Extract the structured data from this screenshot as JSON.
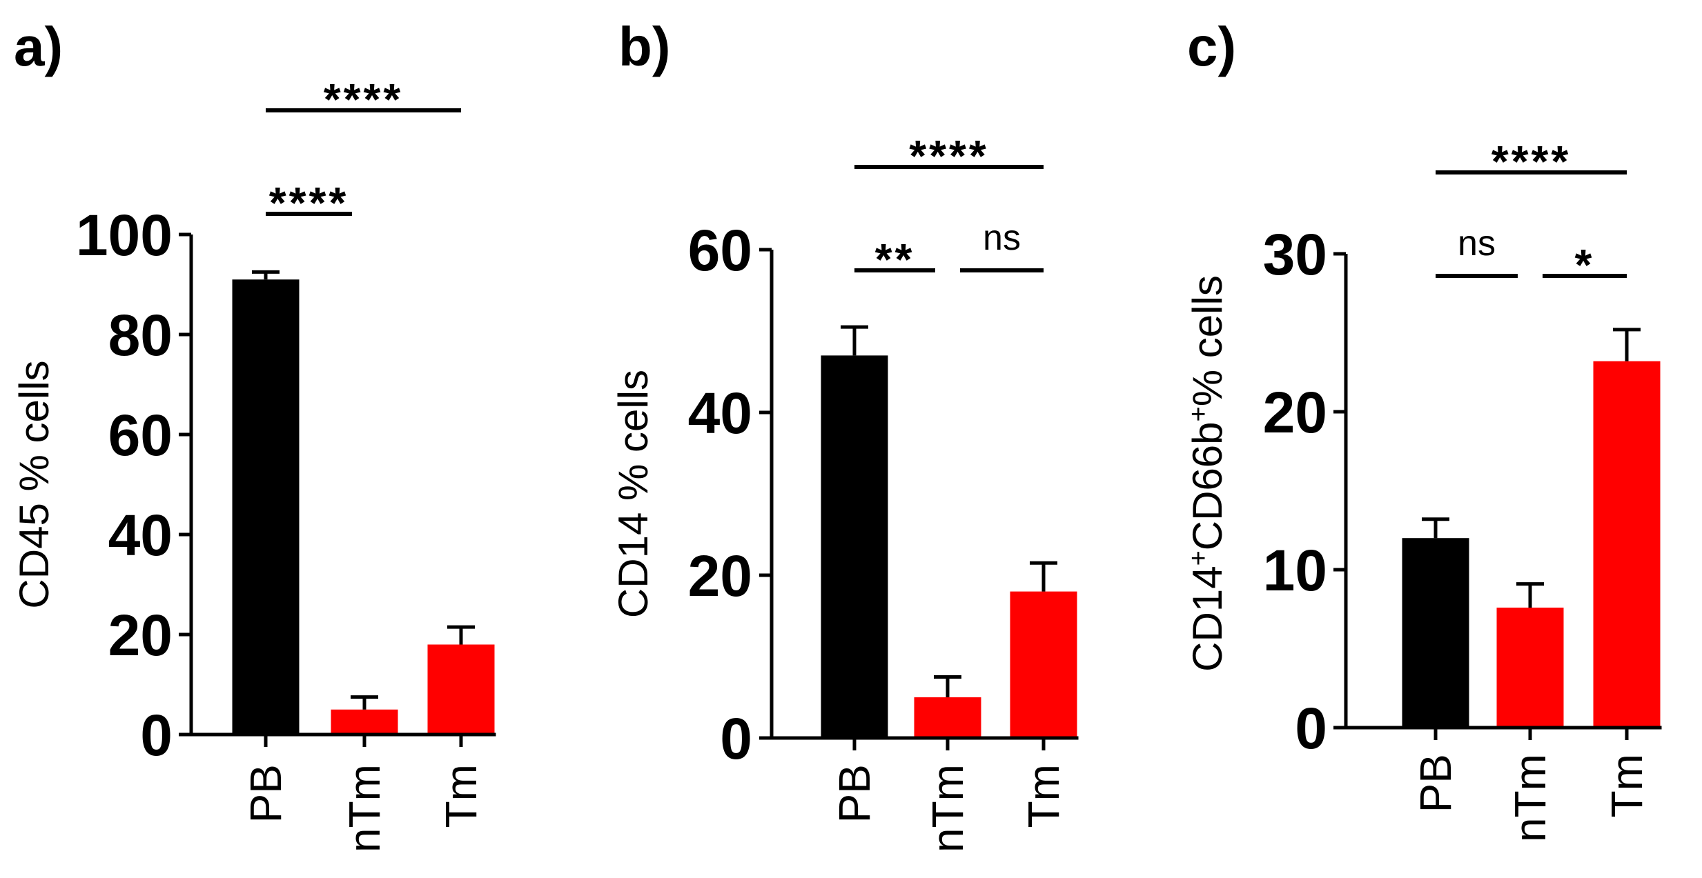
{
  "chart_data": [
    {
      "type": "bar",
      "panel_label": "a)",
      "categories": [
        "PB",
        "nTm",
        "Tm"
      ],
      "values": [
        91,
        5,
        18
      ],
      "errors": [
        1.5,
        2.5,
        3.5
      ],
      "bar_colors": [
        "#000000",
        "#ff0000",
        "#ff0000"
      ],
      "ylabel": "CD45 % cells",
      "ylabel_sup": [],
      "ylim": [
        0,
        100
      ],
      "yticks": [
        0,
        20,
        40,
        60,
        80,
        100
      ],
      "comparisons": [
        {
          "from": 0,
          "to": 1,
          "label": "****",
          "level": 0
        },
        {
          "from": 0,
          "to": 2,
          "label": "****",
          "level": 1
        }
      ]
    },
    {
      "type": "bar",
      "panel_label": "b)",
      "categories": [
        "PB",
        "nTm",
        "Tm"
      ],
      "values": [
        47,
        5,
        18
      ],
      "errors": [
        3.5,
        2.5,
        3.5
      ],
      "bar_colors": [
        "#000000",
        "#ff0000",
        "#ff0000"
      ],
      "ylabel": "CD14 % cells",
      "ylabel_sup": [],
      "ylim": [
        0,
        60
      ],
      "yticks": [
        0,
        20,
        40,
        60
      ],
      "comparisons": [
        {
          "from": 0,
          "to": 1,
          "label": "**",
          "level": 0
        },
        {
          "from": 1,
          "to": 2,
          "label": "ns",
          "level": 0
        },
        {
          "from": 0,
          "to": 2,
          "label": "****",
          "level": 1
        }
      ]
    },
    {
      "type": "bar",
      "panel_label": "c)",
      "categories": [
        "PB",
        "nTm",
        "Tm"
      ],
      "values": [
        12,
        7.6,
        23.2
      ],
      "errors": [
        1.2,
        1.5,
        2.0
      ],
      "bar_colors": [
        "#000000",
        "#ff0000",
        "#ff0000"
      ],
      "ylabel": "CD14+CD66b+% cells",
      "ylabel_sup": [
        "CD14",
        "+",
        "CD66b",
        "+",
        "% cells"
      ],
      "ylim": [
        0,
        30
      ],
      "yticks": [
        0,
        10,
        20,
        30
      ],
      "comparisons": [
        {
          "from": 0,
          "to": 1,
          "label": "ns",
          "level": 0
        },
        {
          "from": 1,
          "to": 2,
          "label": "*",
          "level": 0
        },
        {
          "from": 0,
          "to": 2,
          "label": "****",
          "level": 1
        }
      ]
    }
  ]
}
